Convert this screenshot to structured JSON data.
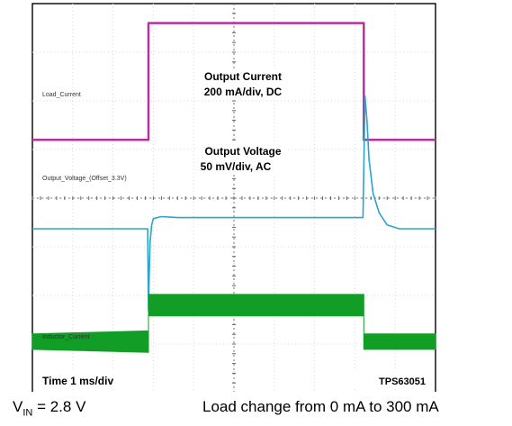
{
  "chart_data": {
    "type": "line",
    "title": "",
    "x_unit": "ms",
    "x_range": [
      0,
      10
    ],
    "y_range_div": [
      -4,
      4
    ],
    "grid": true,
    "colors": {
      "current": "#b8309e",
      "voltage": "#2aa5c8",
      "inductor": "#129d27",
      "frame": "#000000",
      "grid": "#d9d9d9"
    },
    "annotations": {
      "current_title": "Output Current",
      "current_scale": "200 mA/div, DC",
      "voltage_title": "Output Voltage",
      "voltage_scale": "50 mV/div, AC",
      "time_scale": "Time 1 ms/div",
      "part": "TPS63051"
    },
    "channel_labels": {
      "current": "Load_Current",
      "voltage": "Output_Voltage_(Offset_3.3V)",
      "inductor": "Inductor_Current"
    },
    "series": [
      {
        "name": "Output Current",
        "x": [
          0,
          2.88,
          2.88,
          8.22,
          8.22,
          10
        ],
        "y": [
          1.2,
          1.2,
          3.6,
          3.6,
          1.2,
          1.2
        ]
      },
      {
        "name": "Output Voltage",
        "x": [
          0,
          2.86,
          2.88,
          2.9,
          2.92,
          2.96,
          3.0,
          3.2,
          3.6,
          8.2,
          8.22,
          8.25,
          8.3,
          8.35,
          8.45,
          8.6,
          8.8,
          9.1,
          10
        ],
        "y": [
          -0.63,
          -0.63,
          -2.3,
          -1.5,
          -0.9,
          -0.55,
          -0.42,
          -0.38,
          -0.4,
          -0.4,
          0.6,
          2.1,
          1.6,
          0.8,
          0.1,
          -0.3,
          -0.55,
          -0.63,
          -0.63
        ]
      },
      {
        "name": "Inductor Current",
        "x": [
          0,
          2.88,
          2.88,
          8.22,
          8.22,
          10
        ],
        "y": [
          -2.95,
          -2.95,
          -2.2,
          -2.2,
          -2.95,
          -2.95
        ],
        "band": [
          0.16,
          0.22,
          0.22,
          0.22,
          0.16,
          0.16
        ]
      }
    ]
  },
  "caption": {
    "vin_prefix": "V",
    "vin_sub": "IN",
    "vin_value": " = 2.8 V",
    "load_change": "Load change from 0 mA to 300 mA"
  }
}
